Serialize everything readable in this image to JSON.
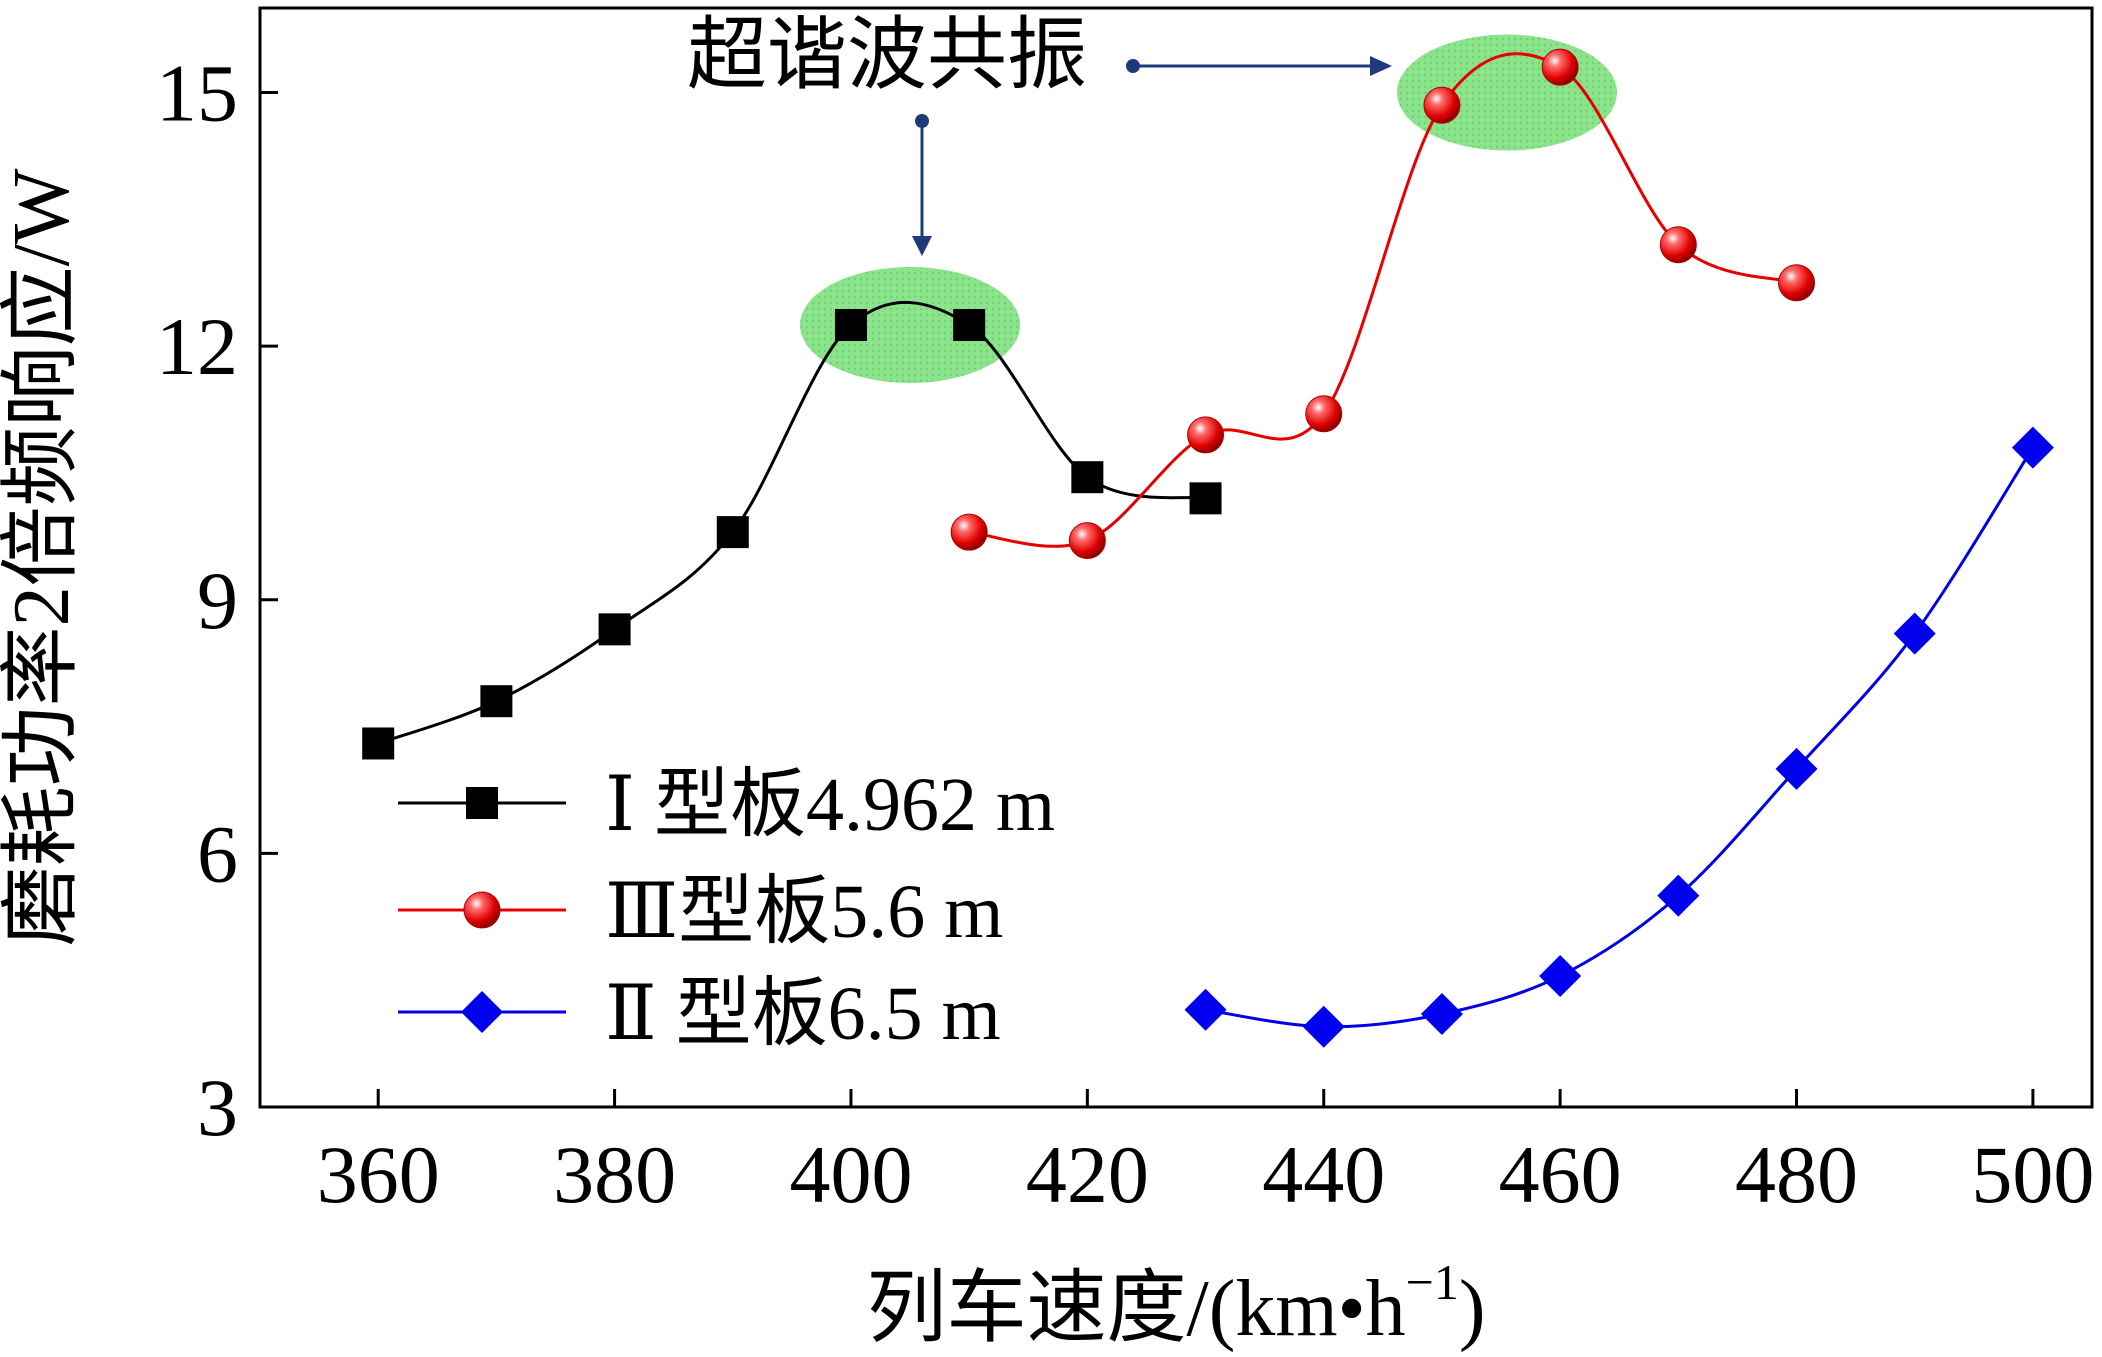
{
  "chart_data": {
    "type": "line",
    "xlabel": "列车速度/(km•h",
    "xlabel_sup": "−1",
    "xlabel_tail": ")",
    "ylabel": "磨耗功率2倍频响应/W",
    "xlim": [
      350,
      505
    ],
    "ylim": [
      3,
      16
    ],
    "xticks": [
      360,
      380,
      400,
      420,
      440,
      460,
      480,
      500
    ],
    "yticks": [
      3,
      6,
      9,
      12,
      15
    ],
    "grid": false,
    "legend_position": "lower-left",
    "annotation": "超谐波共振",
    "series": [
      {
        "name": "Ⅰ 型板4.962 m",
        "color": "#000000",
        "marker": "square",
        "x": [
          360,
          370,
          380,
          390,
          400,
          410,
          420,
          430
        ],
        "y": [
          7.3,
          7.8,
          8.65,
          9.8,
          12.25,
          12.25,
          10.45,
          10.2
        ]
      },
      {
        "name": "Ⅲ型板5.6 m",
        "color": "#e60000",
        "marker": "ball",
        "x": [
          410,
          420,
          430,
          440,
          450,
          460,
          470,
          480
        ],
        "y": [
          9.8,
          9.7,
          10.95,
          11.2,
          14.85,
          15.3,
          13.2,
          12.75
        ]
      },
      {
        "name": "Ⅱ 型板6.5 m",
        "color": "#0000e6",
        "marker": "diamond",
        "x": [
          430,
          440,
          450,
          460,
          470,
          480,
          490,
          500
        ],
        "y": [
          4.15,
          3.95,
          4.1,
          4.55,
          5.5,
          7.0,
          8.6,
          10.8
        ]
      }
    ]
  }
}
